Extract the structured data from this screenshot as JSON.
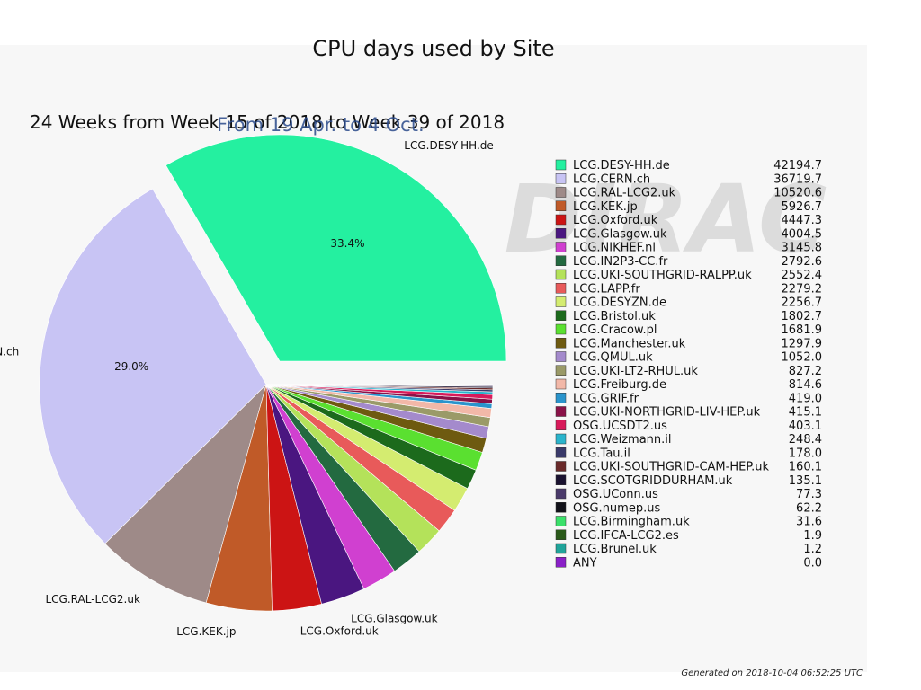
{
  "header": {
    "title": "CPU days used by Site",
    "subtitle": "24 Weeks from Week 15 of 2018 to Week 39 of 2018",
    "date_range": "From 19 Apr. to 4 Oct."
  },
  "footer": {
    "generated": "Generated on 2018-10-04 06:52:25 UTC"
  },
  "watermark": {
    "text": "DIRAC"
  },
  "chart_data": {
    "type": "pie",
    "title": "CPU days used by Site",
    "legend_position": "right",
    "slices": [
      {
        "label": "LCG.DESY-HH.de",
        "value": 42194.7,
        "color": "#24f0a0",
        "pct": "33.4%",
        "exploded": true,
        "outer_label": "LCG.DESY-HH.de"
      },
      {
        "label": "LCG.CERN.ch",
        "value": 36719.7,
        "color": "#c8c4f4",
        "pct": "29.0%",
        "exploded": false,
        "outer_label": "LCG.CERN.ch"
      },
      {
        "label": "LCG.RAL-LCG2.uk",
        "value": 10520.6,
        "color": "#9e8a88",
        "exploded": false,
        "outer_label": "LCG.RAL-LCG2.uk"
      },
      {
        "label": "LCG.KEK.jp",
        "value": 5926.7,
        "color": "#c05a28",
        "exploded": false,
        "outer_label": "LCG.KEK.jp"
      },
      {
        "label": "LCG.Oxford.uk",
        "value": 4447.3,
        "color": "#cc1414",
        "exploded": false,
        "outer_label": "LCG.Oxford.uk"
      },
      {
        "label": "LCG.Glasgow.uk",
        "value": 4004.5,
        "color": "#4a1680",
        "exploded": false,
        "outer_label": "LCG.Glasgow.uk"
      },
      {
        "label": "LCG.NIKHEF.nl",
        "value": 3145.8,
        "color": "#d040d0",
        "exploded": false
      },
      {
        "label": "LCG.IN2P3-CC.fr",
        "value": 2792.6,
        "color": "#236a40",
        "exploded": false
      },
      {
        "label": "LCG.UKI-SOUTHGRID-RALPP.uk",
        "value": 2552.4,
        "color": "#b4e25a",
        "exploded": false
      },
      {
        "label": "LCG.LAPP.fr",
        "value": 2279.2,
        "color": "#e85a5a",
        "exploded": false
      },
      {
        "label": "LCG.DESYZN.de",
        "value": 2256.7,
        "color": "#d4ec70",
        "exploded": false
      },
      {
        "label": "LCG.Bristol.uk",
        "value": 1802.7,
        "color": "#1c6a1c",
        "exploded": false
      },
      {
        "label": "LCG.Cracow.pl",
        "value": 1681.9,
        "color": "#5ae030",
        "exploded": false
      },
      {
        "label": "LCG.Manchester.uk",
        "value": 1297.9,
        "color": "#6e5a10",
        "exploded": false
      },
      {
        "label": "LCG.QMUL.uk",
        "value": 1052.0,
        "color": "#a48acc",
        "exploded": false
      },
      {
        "label": "LCG.UKI-LT2-RHUL.uk",
        "value": 827.2,
        "color": "#9a9a68",
        "exploded": false
      },
      {
        "label": "LCG.Freiburg.de",
        "value": 814.6,
        "color": "#f2b8a8",
        "exploded": false
      },
      {
        "label": "LCG.GRIF.fr",
        "value": 419.0,
        "color": "#2a94cc",
        "exploded": false
      },
      {
        "label": "LCG.UKI-NORTHGRID-LIV-HEP.uk",
        "value": 415.1,
        "color": "#8a1248",
        "exploded": false
      },
      {
        "label": "OSG.UCSDT2.us",
        "value": 403.1,
        "color": "#d81a5a",
        "exploded": false
      },
      {
        "label": "LCG.Weizmann.il",
        "value": 248.4,
        "color": "#2ab4cc",
        "exploded": false
      },
      {
        "label": "LCG.Tau.il",
        "value": 178.0,
        "color": "#3a3a6a",
        "exploded": false
      },
      {
        "label": "LCG.UKI-SOUTHGRID-CAM-HEP.uk",
        "value": 160.1,
        "color": "#6a2a2a",
        "exploded": false
      },
      {
        "label": "LCG.SCOTGRIDDURHAM.uk",
        "value": 135.1,
        "color": "#1a1230",
        "exploded": false
      },
      {
        "label": "OSG.UConn.us",
        "value": 77.3,
        "color": "#4a3a6a",
        "exploded": false
      },
      {
        "label": "OSG.numep.us",
        "value": 62.2,
        "color": "#12121a",
        "exploded": false
      },
      {
        "label": "LCG.Birmingham.uk",
        "value": 31.6,
        "color": "#3ae06a",
        "exploded": false
      },
      {
        "label": "LCG.IFCA-LCG2.es",
        "value": 1.9,
        "color": "#2a5a1a",
        "exploded": false
      },
      {
        "label": "LCG.Brunel.uk",
        "value": 1.2,
        "color": "#20a49a",
        "exploded": false
      },
      {
        "label": "ANY",
        "value": 0.0,
        "color": "#8a20c8",
        "exploded": false
      }
    ]
  }
}
